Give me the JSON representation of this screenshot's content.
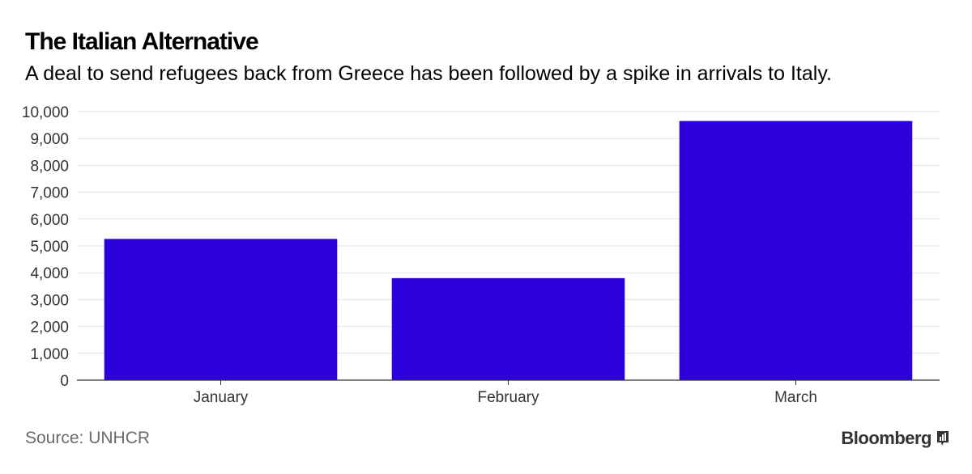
{
  "header": {
    "title": "The Italian Alternative",
    "subtitle": "A deal to send refugees back from Greece has been followed by a spike in arrivals to Italy."
  },
  "footer": {
    "source": "Source: UNHCR",
    "brand": "Bloomberg",
    "brand_icon": "bloomberg-chart-icon"
  },
  "colors": {
    "bar": "#2c00dc",
    "grid": "#e3e3e3",
    "axis": "#333333"
  },
  "chart_data": {
    "type": "bar",
    "title": "The Italian Alternative",
    "subtitle": "A deal to send refugees back from Greece has been followed by a spike in arrivals to Italy.",
    "categories": [
      "January",
      "February",
      "March"
    ],
    "values": [
      5260,
      3800,
      9650
    ],
    "ylim": [
      0,
      10000
    ],
    "yticks": [
      0,
      1000,
      2000,
      3000,
      4000,
      5000,
      6000,
      7000,
      8000,
      9000,
      10000
    ],
    "ytick_labels": [
      "0",
      "1,000",
      "2,000",
      "3,000",
      "4,000",
      "5,000",
      "6,000",
      "7,000",
      "8,000",
      "9,000",
      "10,000"
    ],
    "xlabel": "",
    "ylabel": "",
    "grid": true,
    "legend": "none"
  }
}
